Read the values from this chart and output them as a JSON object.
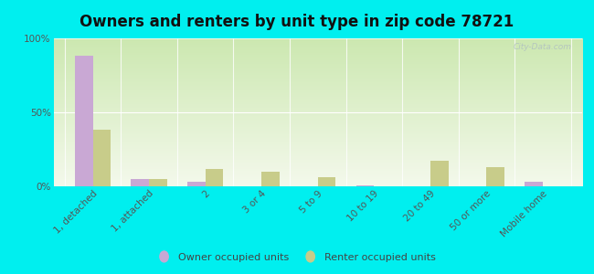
{
  "title": "Owners and renters by unit type in zip code 78721",
  "categories": [
    "1, detached",
    "1, attached",
    "2",
    "3 or 4",
    "5 to 9",
    "10 to 19",
    "20 to 49",
    "50 or more",
    "Mobile home"
  ],
  "owner_values": [
    88,
    5,
    3,
    0,
    0,
    0.5,
    0,
    0,
    3
  ],
  "renter_values": [
    38,
    5,
    12,
    10,
    6,
    0,
    17,
    13,
    0
  ],
  "owner_color": "#c9a8d4",
  "renter_color": "#c8cc8a",
  "background_color": "#00efef",
  "grad_top": "#cce8b0",
  "grad_bottom": "#f4f9ec",
  "title_fontsize": 12,
  "yticks": [
    0,
    50,
    100
  ],
  "ytick_labels": [
    "0%",
    "50%",
    "100%"
  ],
  "watermark": "City-Data.com",
  "legend_owner": "Owner occupied units",
  "legend_renter": "Renter occupied units"
}
